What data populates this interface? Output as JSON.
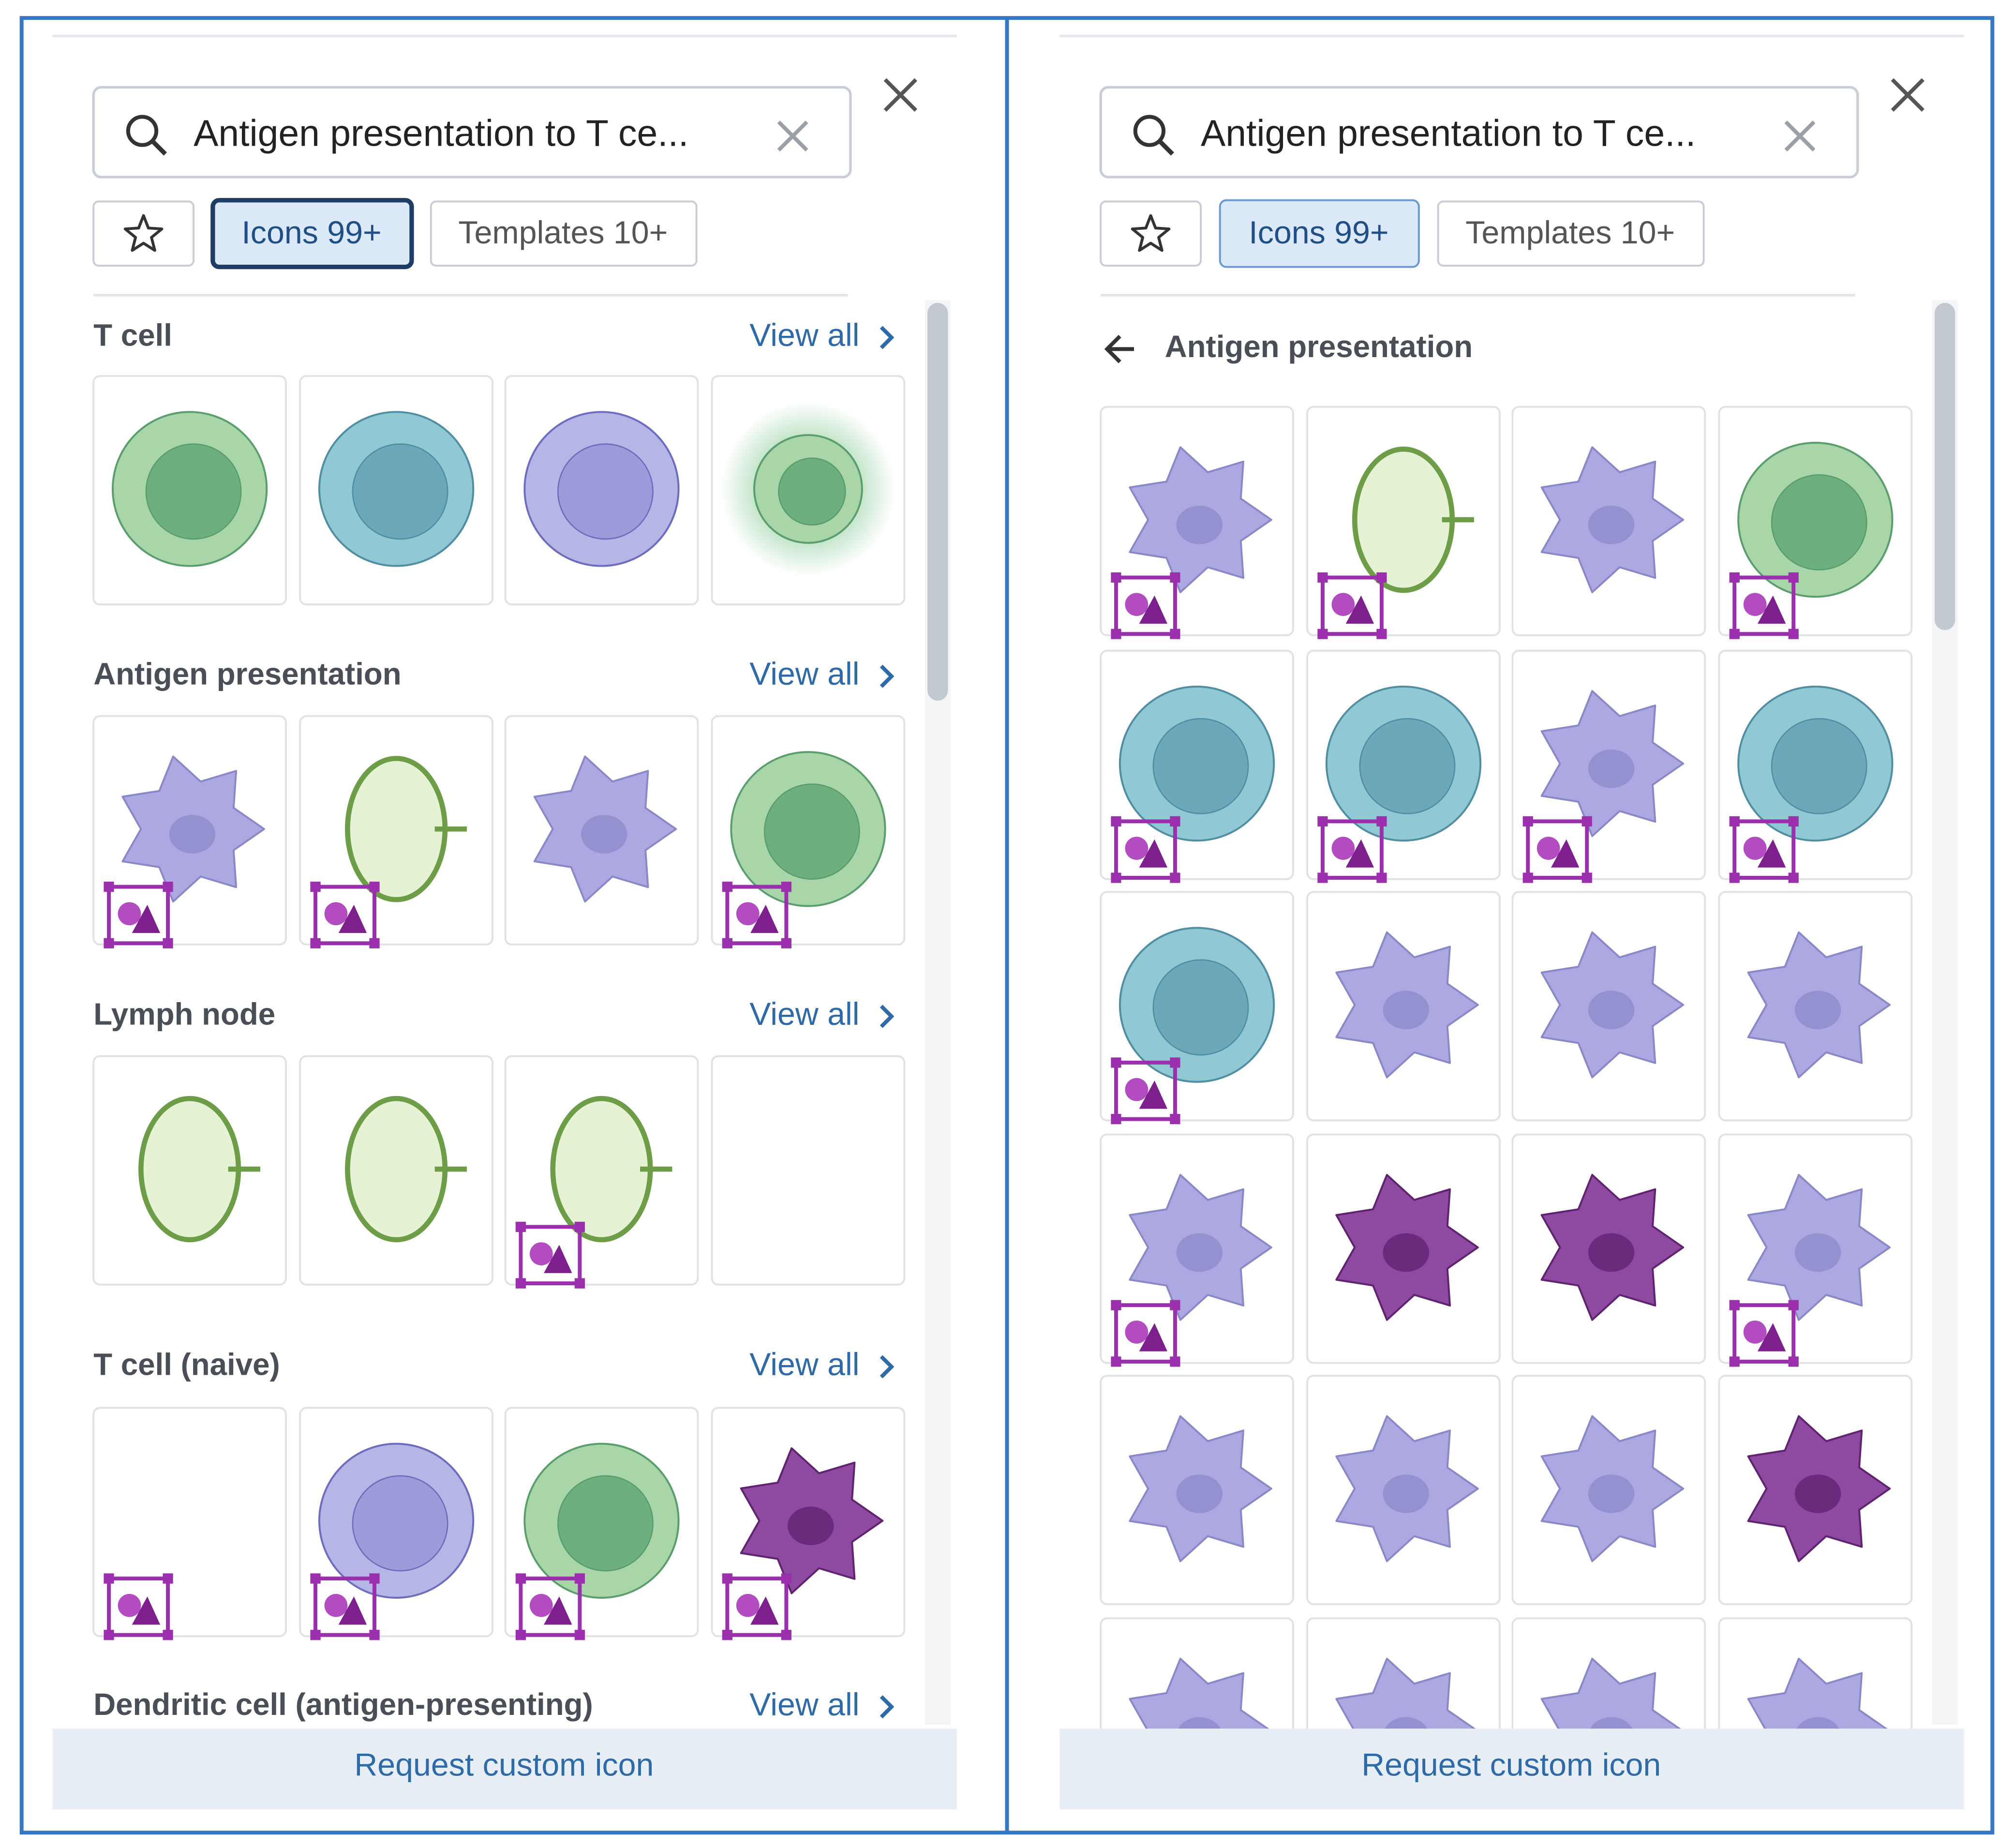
{
  "panels": [
    {
      "search": "Antigen presentation to T ce...",
      "tabs": [
        "Icons 99+",
        "Templates 10+"
      ],
      "sections": [
        {
          "title": "T cell",
          "link": "View all"
        },
        {
          "title": "Antigen presentation",
          "link": "View all"
        },
        {
          "title": "Lymph node",
          "link": "View all"
        },
        {
          "title": "T cell (naive)",
          "link": "View all"
        },
        {
          "title": "Dendritic cell (antigen-presenting)",
          "link": "View all"
        }
      ],
      "footer": "Request custom icon"
    },
    {
      "search": "Antigen presentation to T ce...",
      "tabs": [
        "Icons 99+",
        "Templates 10+"
      ],
      "back_title": "Antigen presentation",
      "footer": "Request custom icon"
    }
  ]
}
